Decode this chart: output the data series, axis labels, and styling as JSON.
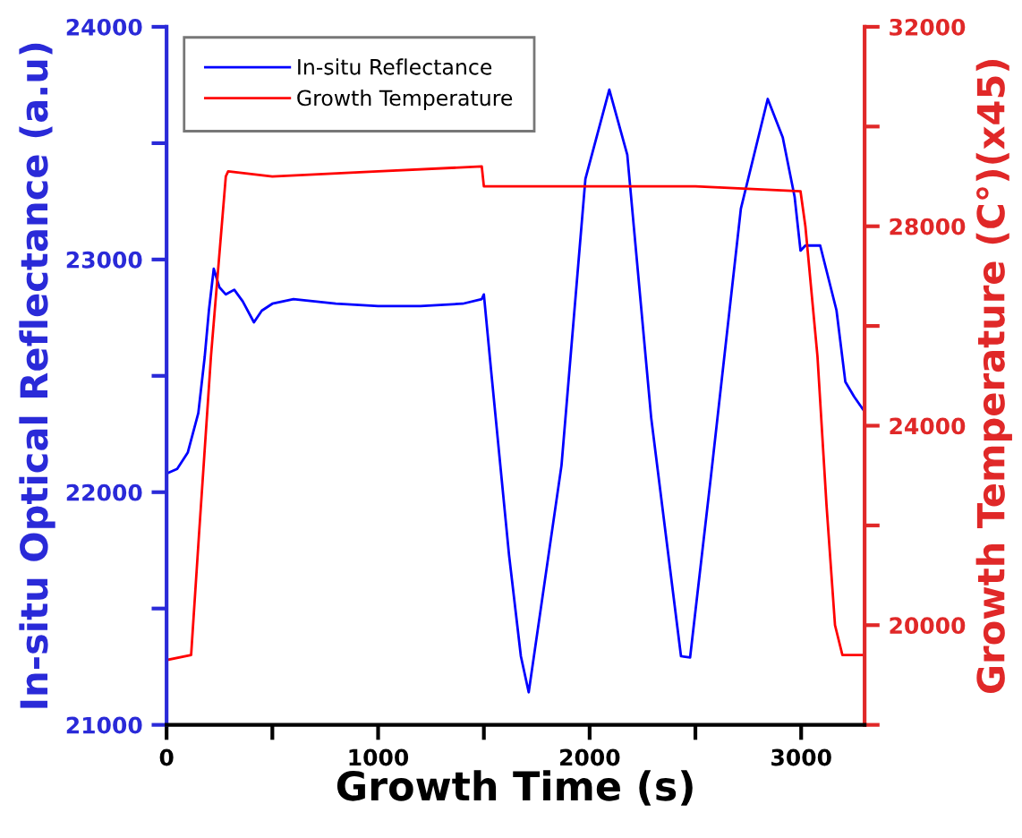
{
  "chart_data": {
    "type": "line",
    "xlabel": "Growth Time (s)",
    "ylabel": "In-situ Optical Reflectance (a.u)",
    "y2label": "Growth Temperature (C°)(x45)",
    "xlim": [
      0,
      3300
    ],
    "xticks": [
      0,
      {
        "value": 500,
        "label": null
      },
      1000,
      {
        "value": 1500,
        "label": null
      },
      2000,
      {
        "value": 2500,
        "label": null
      },
      3000
    ],
    "ylim": [
      21000,
      24000
    ],
    "yticks": [
      21000,
      {
        "value": 21500,
        "label": null
      },
      22000,
      {
        "value": 22500,
        "label": null
      },
      23000,
      {
        "value": 23500,
        "label": null
      },
      24000
    ],
    "y2lim": [
      18000,
      32000
    ],
    "y2ticks": [
      {
        "value": 18000,
        "label": null
      },
      20000,
      {
        "value": 22000,
        "label": null
      },
      24000,
      {
        "value": 26000,
        "label": null
      },
      28000,
      {
        "value": 30000,
        "label": null
      },
      32000
    ],
    "legend": "top left",
    "grid": false,
    "marker": "none",
    "line_style": "solid",
    "series": [
      {
        "name": "In-situ Reflectance",
        "color": "#0000ff",
        "x": [
          0,
          50,
          100,
          150,
          180,
          200,
          223,
          250,
          280,
          320,
          360,
          413,
          450,
          500,
          600,
          700,
          800,
          1000,
          1200,
          1400,
          1490,
          1500,
          1534,
          1619,
          1675,
          1712,
          1867,
          1980,
          2093,
          2178,
          2291,
          2432,
          2475,
          2573,
          2715,
          2842,
          2913,
          2969,
          2997,
          3020,
          3090,
          3167,
          3209,
          3251,
          3300
        ],
        "values": [
          22080,
          22100,
          22170,
          22340,
          22580,
          22780,
          22960,
          22880,
          22850,
          22870,
          22820,
          22730,
          22780,
          22810,
          22830,
          22820,
          22810,
          22800,
          22800,
          22810,
          22830,
          22850,
          22525,
          21730,
          21295,
          21140,
          22115,
          23346,
          23730,
          23450,
          22320,
          21295,
          21290,
          22064,
          23218,
          23690,
          23525,
          23270,
          23038,
          23060,
          23060,
          22782,
          22474,
          22410,
          22346
        ]
      },
      {
        "name": "Growth Temperature",
        "color": "#ff0000",
        "axis": "y2",
        "x": [
          0,
          116,
          153,
          210,
          280,
          291,
          500,
          1000,
          1490,
          1500,
          1600,
          2000,
          2500,
          2997,
          3020,
          3077,
          3120,
          3160,
          3195,
          3300
        ],
        "values": [
          19300,
          19400,
          21800,
          25400,
          29000,
          29100,
          29000,
          29100,
          29200,
          28800,
          28800,
          28800,
          28800,
          28700,
          28000,
          25400,
          22400,
          20000,
          19400,
          19400
        ]
      }
    ]
  }
}
